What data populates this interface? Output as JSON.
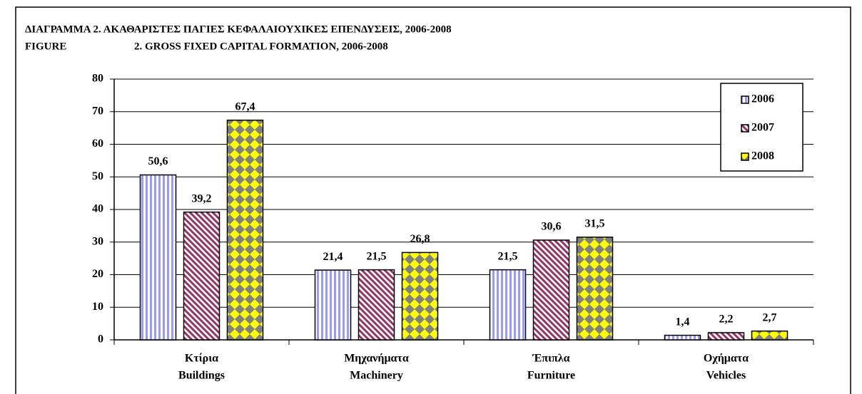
{
  "chart_data": {
    "type": "bar",
    "title": "ΔΙΑΓΡΑΜΜΑ  2. ΑΚΑΘΑΡΙΣΤΕΣ ΠΑΓΙΕΣ ΚΕΦΑΛΑΙΟΥΧΙΚΕΣ ΕΠΕΝΔΥΣΕΙΣ, 2006-2008",
    "subtitle": [
      "FIGURE",
      "2. GROSS FIXED CAPITAL FORMATION, 2006-2008"
    ],
    "categories": [
      [
        "Κτίρια",
        "Buildings"
      ],
      [
        "Μηχανήματα",
        "Machinery"
      ],
      [
        "Έπιπλα",
        "Furniture"
      ],
      [
        "Οχήματα",
        "Vehicles"
      ]
    ],
    "series": [
      {
        "name": "2006",
        "color": "#9999ff",
        "values": [
          50.6,
          21.4,
          21.5,
          1.4
        ],
        "value_labels": [
          "50,6",
          "21,4",
          "21,5",
          "1,4"
        ]
      },
      {
        "name": "2007",
        "color": "#993366",
        "values": [
          39.2,
          21.5,
          30.6,
          2.2
        ],
        "value_labels": [
          "39,2",
          "21,5",
          "30,6",
          "2,2"
        ]
      },
      {
        "name": "2008",
        "color": "#ffff00",
        "values": [
          67.4,
          26.8,
          31.5,
          2.7
        ],
        "value_labels": [
          "67,4",
          "26,8",
          "31,5",
          "2,7"
        ]
      }
    ],
    "ylim": [
      0,
      80
    ],
    "yticks": [
      0,
      10,
      20,
      30,
      40,
      50,
      60,
      70,
      80
    ],
    "grid": true,
    "legend": "upper right"
  }
}
